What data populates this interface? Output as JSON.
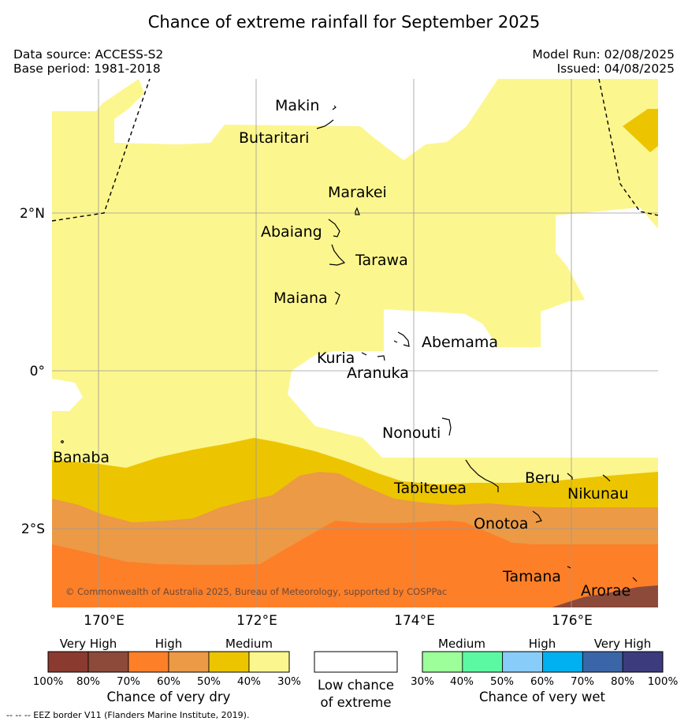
{
  "title": "Chance of extreme rainfall for September 2025",
  "meta": {
    "data_source": "Data source: ACCESS-S2",
    "base_period": "Base period: 1981-2018",
    "model_run": "Model Run: 02/08/2025",
    "issued": "Issued: 04/08/2025"
  },
  "axes": {
    "lon_ticks": [
      "170°E",
      "172°E",
      "174°E",
      "176°E"
    ],
    "lat_ticks": [
      "2°N",
      "0°",
      "2°S"
    ]
  },
  "places": {
    "makin": "Makin",
    "butaritari": "Butaritari",
    "marakei": "Marakei",
    "abaiang": "Abaiang",
    "tarawa": "Tarawa",
    "maiana": "Maiana",
    "abemama": "Abemama",
    "kuria": "Kuria",
    "aranuka": "Aranuka",
    "nonouti": "Nonouti",
    "banaba": "Banaba",
    "tabiteuea": "Tabiteuea",
    "beru": "Beru",
    "nikunau": "Nikunau",
    "onotoa": "Onotoa",
    "tamana": "Tamana",
    "arorae": "Arorae"
  },
  "copyright": "© Commonwealth of Australia 2025, Bureau of Meteorology, supported by COSPPac",
  "legend": {
    "dry": {
      "title": "Chance of very dry",
      "groups": [
        "Very High",
        "High",
        "Medium"
      ],
      "ticks": [
        "100%",
        "80%",
        "70%",
        "60%",
        "50%",
        "40%",
        "30%"
      ],
      "colors": [
        "#8b3a2f",
        "#8b4a3a",
        "#fd7f28",
        "#ec9a45",
        "#ecc500",
        "#fcf68e"
      ]
    },
    "neutral": {
      "title": "Low chance of extreme",
      "color": "#ffffff"
    },
    "wet": {
      "title": "Chance of very wet",
      "groups": [
        "Medium",
        "High",
        "Very High"
      ],
      "ticks": [
        "30%",
        "40%",
        "50%",
        "60%",
        "70%",
        "80%",
        "100%"
      ],
      "colors": [
        "#9cff9a",
        "#5cf9a3",
        "#88ccfa",
        "#00b0ef",
        "#3a66a8",
        "#3b3b7d"
      ]
    }
  },
  "footer": "-- -- -- EEZ border V11 (Flanders Marine Institute, 2019)."
}
